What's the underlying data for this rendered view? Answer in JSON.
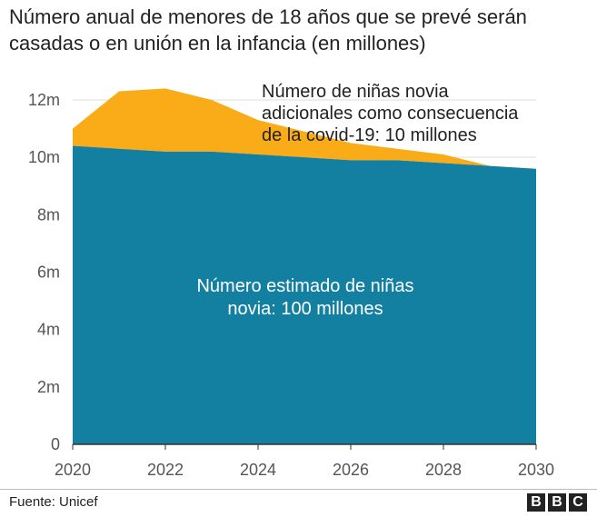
{
  "title_lines": [
    "Número anual de menores de 18 años que se prevé serán",
    "casadas o en unión en la infancia (en millones)"
  ],
  "source": "Fuente: Unicef",
  "logo_letters": [
    "B",
    "B",
    "C"
  ],
  "colors": {
    "estimated": "#1380A1",
    "additional": "#FAAB18",
    "gridline": "#dddddd",
    "axis": "#333333"
  },
  "chart_data": {
    "type": "area",
    "title": "Número anual de menores de 18 años que se prevé serán casadas o en unión en la infancia (en millones)",
    "x": [
      2020,
      2021,
      2022,
      2023,
      2024,
      2025,
      2026,
      2027,
      2028,
      2029,
      2030
    ],
    "series": [
      {
        "name": "Número estimado de niñas novia",
        "label_lines": [
          "Número estimado de niñas",
          "novia: 100 millones"
        ],
        "values": [
          10.4,
          10.3,
          10.2,
          10.2,
          10.1,
          10.0,
          9.9,
          9.9,
          9.8,
          9.7,
          9.6
        ]
      },
      {
        "name": "Número de niñas novia adicionales como consecuencia de la covid-19",
        "label_lines": [
          "Número de niñas novia",
          "adicionales como consecuencia",
          "de la covid-19: 10 millones"
        ],
        "values": [
          0.6,
          2.0,
          2.2,
          1.8,
          1.2,
          0.9,
          0.6,
          0.4,
          0.3,
          0.0,
          0.0
        ]
      }
    ],
    "y_ticks": [
      0,
      2,
      4,
      6,
      8,
      10,
      12
    ],
    "y_tick_labels": [
      "0",
      "2m",
      "4m",
      "6m",
      "8m",
      "10m",
      "12m"
    ],
    "x_ticks": [
      2020,
      2022,
      2024,
      2026,
      2028,
      2030
    ],
    "x_tick_labels": [
      "2020",
      "2022",
      "2024",
      "2026",
      "2028",
      "2030"
    ],
    "xlim": [
      2020,
      2030
    ],
    "ylim": [
      0,
      12
    ],
    "stacked": true,
    "grid": true
  }
}
